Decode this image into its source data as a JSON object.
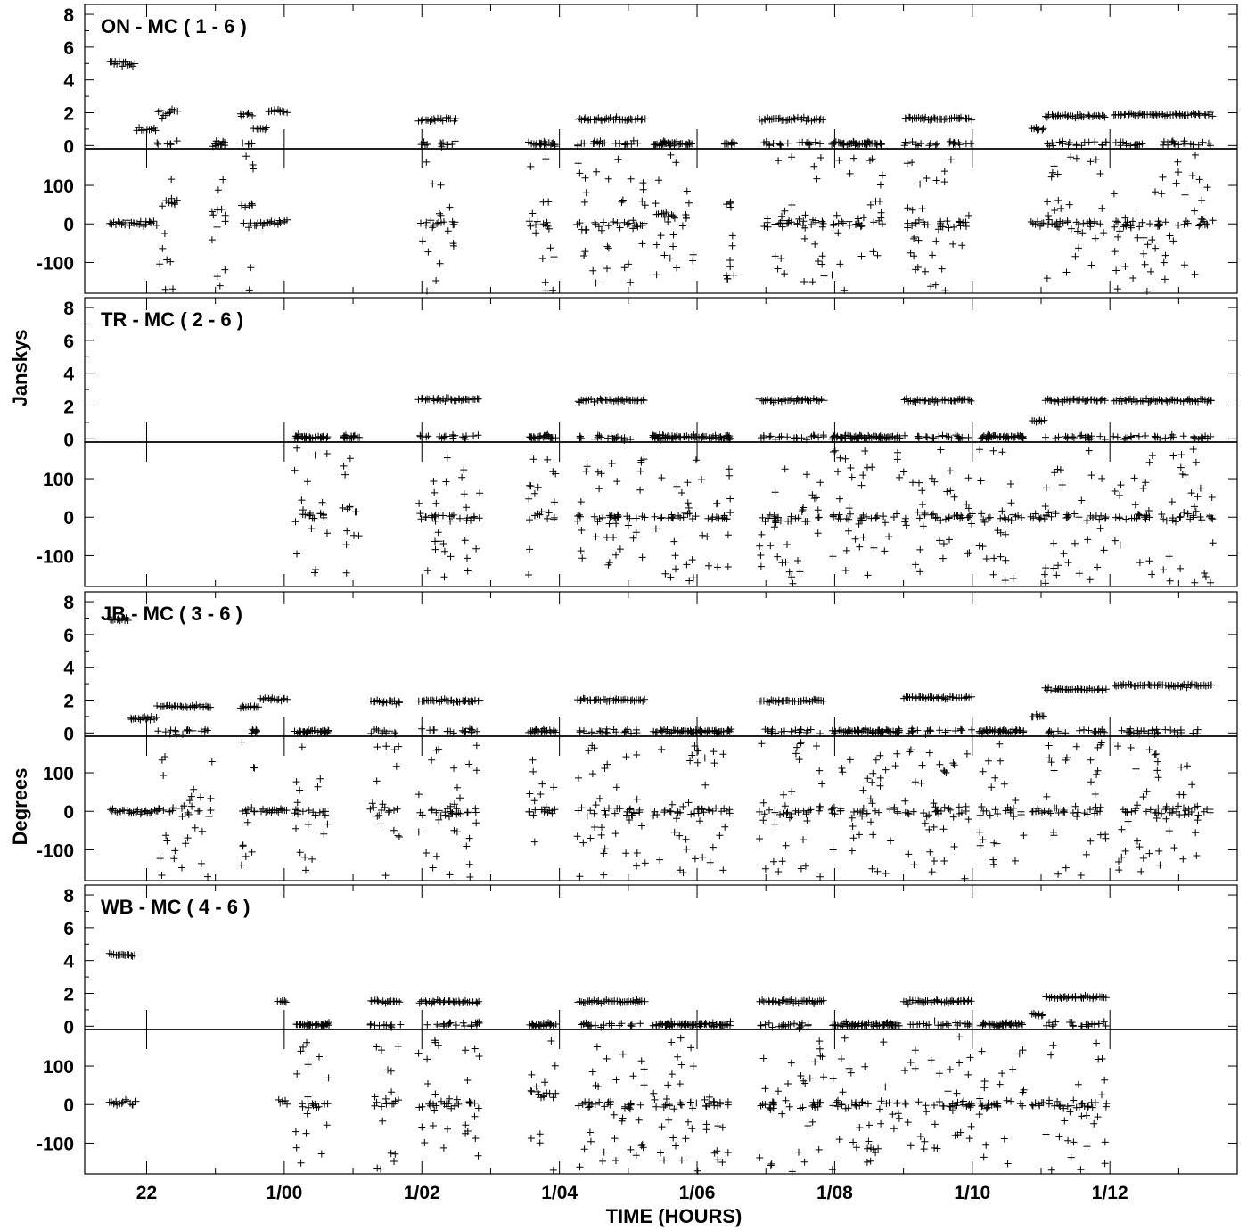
{
  "chart_data": {
    "type": "scatter",
    "xlabel": "TIME (HOURS)",
    "ylabel_amplitude": "Janskys",
    "ylabel_phase": "Degrees",
    "x_tick_labels": [
      "22",
      "1/00",
      "1/02",
      "1/04",
      "1/06",
      "1/08",
      "1/10",
      "1/12"
    ],
    "x_tick_hours": [
      22,
      24,
      26,
      28,
      30,
      32,
      34,
      36
    ],
    "xlim_hours": [
      21.1,
      37.85
    ],
    "amplitude_ylim": [
      -0.2,
      8.6
    ],
    "amplitude_ticks": [
      0,
      2,
      4,
      6,
      8
    ],
    "phase_ylim": [
      -180,
      195
    ],
    "phase_ticks": [
      -100,
      0,
      100
    ],
    "marker": "plus",
    "panels": [
      {
        "title": "ON - MC ( 1 - 6 )",
        "scans": [
          {
            "start": 21.45,
            "end": 21.85,
            "amp": 5.0,
            "phase": 0,
            "spread": 0.2
          },
          {
            "start": 21.85,
            "end": 22.15,
            "amp": 1.0,
            "phase": 0,
            "spread": 0.1
          },
          {
            "start": 22.15,
            "end": 22.45,
            "amp": 2.0,
            "phase": 60,
            "spread": 0.3,
            "scatter": true
          },
          {
            "start": 22.95,
            "end": 23.15,
            "amp": 0.1,
            "phase": 30,
            "spread": 0.2,
            "scatter": true
          },
          {
            "start": 23.35,
            "end": 23.55,
            "amp": 1.9,
            "phase": 50,
            "spread": 0.2,
            "scatter": true
          },
          {
            "start": 23.55,
            "end": 23.75,
            "amp": 1.0,
            "phase": 0,
            "spread": 0.1
          },
          {
            "start": 23.75,
            "end": 24.05,
            "amp": 2.1,
            "phase": 5,
            "spread": 0.1
          },
          {
            "start": 25.95,
            "end": 26.5,
            "amp": 1.6,
            "phase": 0,
            "spread": 0.1,
            "scatter": true
          },
          {
            "start": 27.55,
            "end": 27.95,
            "amp": 0.1,
            "phase": 0,
            "spread": 0.1,
            "scatter": true
          },
          {
            "start": 28.25,
            "end": 29.25,
            "amp": 1.6,
            "phase": 0,
            "spread": 0.1,
            "scatter": true
          },
          {
            "start": 29.35,
            "end": 29.95,
            "amp": 0.1,
            "phase": 20,
            "spread": 0.1,
            "scatter": true
          },
          {
            "start": 30.4,
            "end": 30.55,
            "amp": 0.1,
            "phase": 50,
            "spread": 0.1,
            "scatter": true
          },
          {
            "start": 30.9,
            "end": 31.85,
            "amp": 1.6,
            "phase": 0,
            "spread": 0.1,
            "scatter": true
          },
          {
            "start": 31.95,
            "end": 32.7,
            "amp": 0.1,
            "phase": 0,
            "spread": 0.1,
            "scatter": true
          },
          {
            "start": 33.0,
            "end": 34.0,
            "amp": 1.65,
            "phase": 0,
            "spread": 0.1,
            "scatter": true
          },
          {
            "start": 34.85,
            "end": 35.05,
            "amp": 1.0,
            "phase": 0,
            "spread": 0.1
          },
          {
            "start": 35.05,
            "end": 35.95,
            "amp": 1.8,
            "phase": 0,
            "spread": 0.1,
            "scatter": true
          },
          {
            "start": 36.05,
            "end": 37.5,
            "amp": 1.9,
            "phase": 0,
            "spread": 0.1,
            "scatter": true
          }
        ]
      },
      {
        "title": "TR - MC ( 2 - 6 )",
        "scans": [
          {
            "start": 24.15,
            "end": 24.65,
            "amp": 0.1,
            "phase": 0,
            "spread": 0.1,
            "scatter": true
          },
          {
            "start": 24.85,
            "end": 25.1,
            "amp": 0.1,
            "phase": 20,
            "spread": 0.1,
            "scatter": true
          },
          {
            "start": 25.95,
            "end": 26.85,
            "amp": 2.4,
            "phase": 0,
            "spread": 0.1,
            "scatter": true
          },
          {
            "start": 27.55,
            "end": 27.95,
            "amp": 0.1,
            "phase": 0,
            "spread": 0.1,
            "scatter": true
          },
          {
            "start": 28.25,
            "end": 29.25,
            "amp": 2.35,
            "phase": 0,
            "spread": 0.1,
            "scatter": true
          },
          {
            "start": 29.35,
            "end": 30.5,
            "amp": 0.1,
            "phase": 0,
            "spread": 0.1,
            "scatter": true
          },
          {
            "start": 30.9,
            "end": 31.85,
            "amp": 2.35,
            "phase": 0,
            "spread": 0.1,
            "scatter": true
          },
          {
            "start": 31.95,
            "end": 32.95,
            "amp": 0.1,
            "phase": 0,
            "spread": 0.1,
            "scatter": true
          },
          {
            "start": 33.0,
            "end": 34.0,
            "amp": 2.35,
            "phase": 0,
            "spread": 0.1,
            "scatter": true
          },
          {
            "start": 34.1,
            "end": 34.75,
            "amp": 0.1,
            "phase": 0,
            "spread": 0.1,
            "scatter": true
          },
          {
            "start": 34.85,
            "end": 35.05,
            "amp": 1.1,
            "phase": 0,
            "spread": 0.1
          },
          {
            "start": 35.05,
            "end": 35.95,
            "amp": 2.35,
            "phase": 0,
            "spread": 0.1,
            "scatter": true
          },
          {
            "start": 36.05,
            "end": 37.5,
            "amp": 2.35,
            "phase": 0,
            "spread": 0.1,
            "scatter": true
          }
        ]
      },
      {
        "title": "JB - MC ( 3 - 6 )",
        "scans": [
          {
            "start": 21.45,
            "end": 21.75,
            "amp": 6.9,
            "phase": 0,
            "spread": 0.1
          },
          {
            "start": 21.75,
            "end": 22.15,
            "amp": 0.9,
            "phase": 0,
            "spread": 0.1
          },
          {
            "start": 22.15,
            "end": 22.95,
            "amp": 1.6,
            "phase": 0,
            "spread": 0.1,
            "scatter": true
          },
          {
            "start": 23.35,
            "end": 23.65,
            "amp": 1.6,
            "phase": 0,
            "spread": 0.1,
            "scatter": true
          },
          {
            "start": 23.65,
            "end": 24.05,
            "amp": 2.05,
            "phase": 0,
            "spread": 0.1
          },
          {
            "start": 24.15,
            "end": 24.65,
            "amp": 0.1,
            "phase": 0,
            "spread": 0.1,
            "scatter": true
          },
          {
            "start": 25.25,
            "end": 25.7,
            "amp": 1.9,
            "phase": 0,
            "spread": 0.1,
            "scatter": true
          },
          {
            "start": 25.95,
            "end": 26.85,
            "amp": 1.95,
            "phase": 0,
            "spread": 0.1,
            "scatter": true
          },
          {
            "start": 27.55,
            "end": 27.95,
            "amp": 0.1,
            "phase": 0,
            "spread": 0.1,
            "scatter": true
          },
          {
            "start": 28.25,
            "end": 29.25,
            "amp": 2.0,
            "phase": 0,
            "spread": 0.1,
            "scatter": true
          },
          {
            "start": 29.35,
            "end": 30.5,
            "amp": 0.1,
            "phase": 0,
            "spread": 0.1,
            "scatter": true
          },
          {
            "start": 30.9,
            "end": 31.85,
            "amp": 1.95,
            "phase": 0,
            "spread": 0.1,
            "scatter": true
          },
          {
            "start": 31.95,
            "end": 32.95,
            "amp": 0.1,
            "phase": 0,
            "spread": 0.1,
            "scatter": true
          },
          {
            "start": 33.0,
            "end": 34.0,
            "amp": 2.15,
            "phase": 0,
            "spread": 0.1,
            "scatter": true
          },
          {
            "start": 34.1,
            "end": 34.75,
            "amp": 0.1,
            "phase": 0,
            "spread": 0.1,
            "scatter": true
          },
          {
            "start": 34.85,
            "end": 35.05,
            "amp": 1.0,
            "phase": 0,
            "spread": 0.1
          },
          {
            "start": 35.05,
            "end": 35.95,
            "amp": 2.65,
            "phase": 0,
            "spread": 0.1,
            "scatter": true
          },
          {
            "start": 36.05,
            "end": 37.5,
            "amp": 2.9,
            "phase": 0,
            "spread": 0.1,
            "scatter": true
          }
        ]
      },
      {
        "title": "WB - MC ( 4 - 6 )",
        "scans": [
          {
            "start": 21.45,
            "end": 21.85,
            "amp": 4.35,
            "phase": 5,
            "spread": 0.1
          },
          {
            "start": 23.9,
            "end": 24.05,
            "amp": 1.5,
            "phase": 5,
            "spread": 0.1
          },
          {
            "start": 24.15,
            "end": 24.65,
            "amp": 0.1,
            "phase": 0,
            "spread": 0.1,
            "scatter": true
          },
          {
            "start": 25.25,
            "end": 25.7,
            "amp": 1.5,
            "phase": 5,
            "spread": 0.1,
            "scatter": true
          },
          {
            "start": 25.95,
            "end": 26.85,
            "amp": 1.5,
            "phase": 0,
            "spread": 0.1,
            "scatter": true
          },
          {
            "start": 27.55,
            "end": 27.95,
            "amp": 0.1,
            "phase": 30,
            "spread": 0.1,
            "scatter": true
          },
          {
            "start": 28.25,
            "end": 29.25,
            "amp": 1.5,
            "phase": 0,
            "spread": 0.1,
            "scatter": true
          },
          {
            "start": 29.35,
            "end": 30.5,
            "amp": 0.1,
            "phase": 0,
            "spread": 0.1,
            "scatter": true
          },
          {
            "start": 30.9,
            "end": 31.85,
            "amp": 1.5,
            "phase": 0,
            "spread": 0.1,
            "scatter": true
          },
          {
            "start": 31.95,
            "end": 32.95,
            "amp": 0.1,
            "phase": 0,
            "spread": 0.1,
            "scatter": true
          },
          {
            "start": 33.0,
            "end": 34.0,
            "amp": 1.5,
            "phase": 0,
            "spread": 0.1,
            "scatter": true
          },
          {
            "start": 34.1,
            "end": 34.75,
            "amp": 0.1,
            "phase": 0,
            "spread": 0.1,
            "scatter": true
          },
          {
            "start": 34.85,
            "end": 35.05,
            "amp": 0.7,
            "phase": 0,
            "spread": 0.1
          },
          {
            "start": 35.05,
            "end": 35.95,
            "amp": 1.75,
            "phase": 0,
            "spread": 0.1,
            "scatter": true
          }
        ]
      }
    ]
  }
}
